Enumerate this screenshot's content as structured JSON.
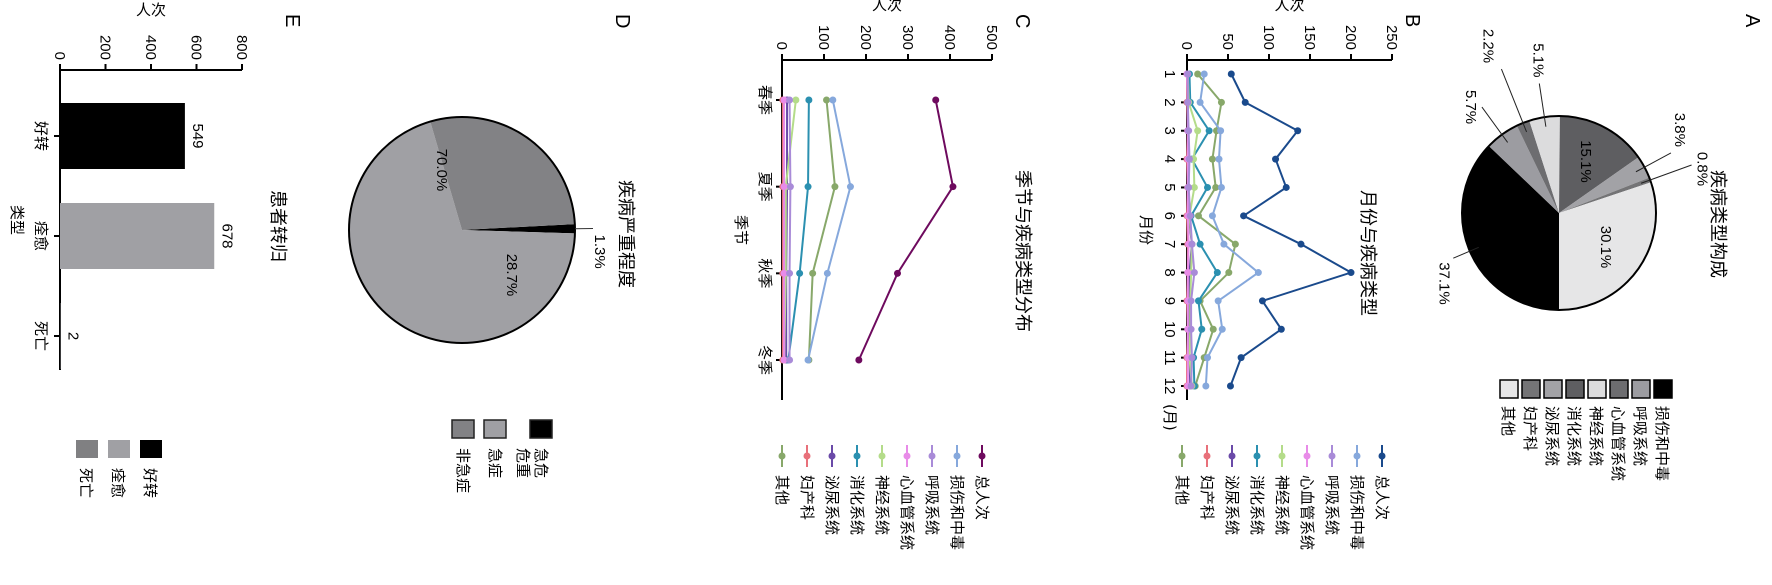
{
  "panels": {
    "A": {
      "letter": "A",
      "chart_data": {
        "type": "pie",
        "title": "疾病类型构成",
        "categories": [
          "损伤和中毒",
          "呼吸系统",
          "心血管系统",
          "神经系统",
          "消化系统",
          "泌尿系统",
          "妇产科",
          "其他"
        ],
        "values": [
          37.1,
          5.7,
          2.2,
          5.1,
          15.1,
          3.8,
          0.8,
          30.1
        ],
        "labels": [
          "37.1%",
          "5.7%",
          "2.2%",
          "5.1%",
          "15.1%",
          "3.8%",
          "0.8%",
          "30.1%"
        ],
        "colors": [
          "#000000",
          "#9c9ca1",
          "#6d6d70",
          "#dcdcdd",
          "#5e5e61",
          "#a2a2a6",
          "#747476",
          "#e6e6e7"
        ],
        "legend_position": "right"
      }
    },
    "B": {
      "letter": "B",
      "chart_data": {
        "type": "line",
        "title": "月份与疾病类型",
        "xlabel": "月份",
        "ylabel": "人次",
        "x": [
          "1",
          "2",
          "3",
          "4",
          "5",
          "6",
          "7",
          "8",
          "9",
          "10",
          "11",
          "12"
        ],
        "x_unit_label": "(月)",
        "ylim": [
          0,
          250
        ],
        "yticks": [
          0,
          50,
          100,
          150,
          200,
          250
        ],
        "legend_position": "bottom",
        "series": [
          {
            "name": "总人次",
            "color": "#1a4a8c",
            "values": [
              54,
              71,
              135,
              108,
              121,
              69,
              139,
              200,
              92,
              115,
              66,
              53
            ]
          },
          {
            "name": "损伤和中毒",
            "color": "#86a8dc",
            "values": [
              21,
              16,
              41,
              39,
              42,
              31,
              45,
              87,
              38,
              43,
              25,
              23
            ]
          },
          {
            "name": "呼吸系统",
            "color": "#a98bd8",
            "values": [
              1,
              1,
              2,
              3,
              2,
              4,
              6,
              9,
              5,
              5,
              6,
              5
            ]
          },
          {
            "name": "心血管系统",
            "color": "#e88be8",
            "values": [
              0,
              1,
              1,
              1,
              1,
              1,
              2,
              1,
              1,
              1,
              1,
              1
            ]
          },
          {
            "name": "神经系统",
            "color": "#b4dc8a",
            "values": [
              1,
              2,
              13,
              8,
              9,
              3,
              6,
              5,
              4,
              4,
              3,
              6
            ]
          },
          {
            "name": "消化系统",
            "color": "#2b90b0",
            "values": [
              3,
              4,
              27,
              6,
              25,
              5,
              16,
              37,
              14,
              18,
              8,
              9
            ]
          },
          {
            "name": "泌尿系统",
            "color": "#6a4aa8",
            "values": [
              1,
              1,
              1,
              2,
              2,
              2,
              6,
              3,
              2,
              3,
              3,
              4
            ]
          },
          {
            "name": "妇产科",
            "color": "#e8707a",
            "values": [
              0,
              0,
              1,
              0,
              1,
              0,
              1,
              1,
              0,
              1,
              0,
              0
            ]
          },
          {
            "name": "其他",
            "color": "#88a86a",
            "values": [
              13,
              42,
              36,
              31,
              35,
              14,
              59,
              51,
              16,
              32,
              21,
              10
            ]
          }
        ]
      }
    },
    "C": {
      "letter": "C",
      "chart_data": {
        "type": "line",
        "title": "季节与疾病类型分布",
        "xlabel": "季节",
        "ylabel": "人次",
        "x": [
          "春季",
          "夏季",
          "秋季",
          "冬季"
        ],
        "ylim": [
          0,
          500
        ],
        "yticks": [
          0,
          100,
          200,
          300,
          400,
          500
        ],
        "legend_position": "bottom",
        "series": [
          {
            "name": "总人次",
            "color": "#6e0a5e",
            "values": [
              366,
              407,
              275,
              183
            ]
          },
          {
            "name": "损伤和中毒",
            "color": "#86a8dc",
            "values": [
              121,
              163,
              108,
              62
            ]
          },
          {
            "name": "呼吸系统",
            "color": "#a98bd8",
            "values": [
              18,
              20,
              18,
              18
            ]
          },
          {
            "name": "心血管系统",
            "color": "#e88be8",
            "values": [
              5,
              5,
              5,
              5
            ]
          },
          {
            "name": "神经系统",
            "color": "#b4dc8a",
            "values": [
              33,
              9,
              9,
              5
            ]
          },
          {
            "name": "消化系统",
            "color": "#2b90b0",
            "values": [
              64,
              62,
              42,
              15
            ]
          },
          {
            "name": "泌尿系统",
            "color": "#6a4aa8",
            "values": [
              12,
              12,
              10,
              10
            ]
          },
          {
            "name": "妇产科",
            "color": "#e8707a",
            "values": [
              2,
              2,
              2,
              2
            ]
          },
          {
            "name": "其他",
            "color": "#88a86a",
            "values": [
              106,
              126,
              73,
              64
            ]
          }
        ]
      }
    },
    "D": {
      "letter": "D",
      "chart_data": {
        "type": "pie",
        "title": "疾病严重程度",
        "categories": [
          "急危危重",
          "急症",
          "非急症"
        ],
        "legend_lines": [
          [
            "急危",
            "危重"
          ],
          [
            "急症"
          ],
          [
            "非急症"
          ]
        ],
        "values": [
          1.3,
          70.0,
          28.7
        ],
        "labels": [
          "1.3%",
          "70.0%",
          "28.7%"
        ],
        "colors": [
          "#000000",
          "#a0a0a4",
          "#828285"
        ],
        "legend_position": "bottom"
      }
    },
    "E": {
      "letter": "E",
      "chart_data": {
        "type": "bar",
        "title": "患者转归",
        "xlabel": "类型",
        "ylabel": "人次",
        "categories": [
          "好转",
          "痊愈",
          "死亡"
        ],
        "values": [
          549,
          678,
          2
        ],
        "data_labels": [
          "549",
          "678",
          "2"
        ],
        "colors": [
          "#000000",
          "#a0a0a4",
          "#808082"
        ],
        "ylim": [
          0,
          800
        ],
        "yticks": [
          0,
          200,
          400,
          600,
          800
        ],
        "legend_position": "bottom"
      }
    }
  }
}
